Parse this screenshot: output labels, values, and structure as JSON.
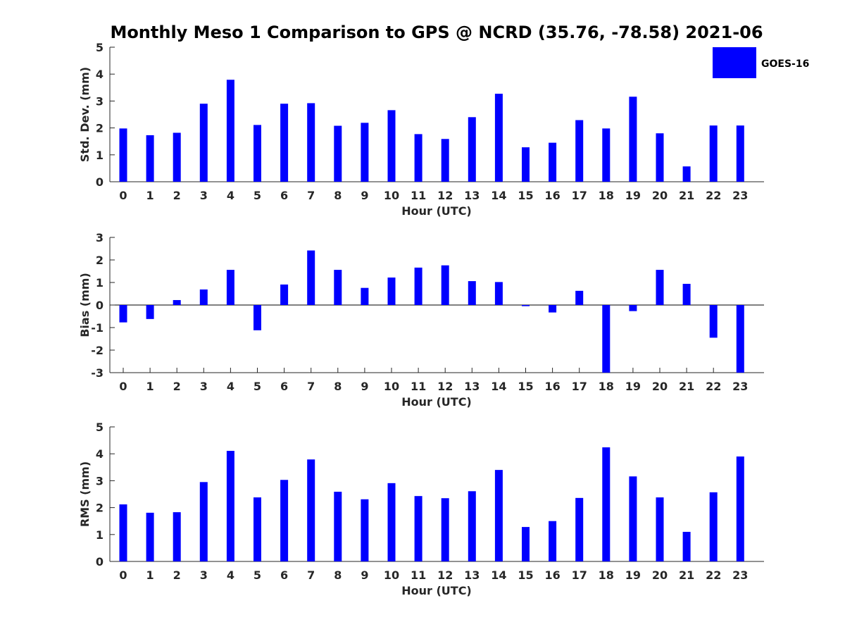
{
  "figure": {
    "title": "Monthly Meso 1 Comparison to GPS @ NCRD (35.76, -78.58) 2021-06",
    "legend_label": "GOES-16",
    "legend_placement": "top-right",
    "bar_color": "#0000ff"
  },
  "chart_data": [
    {
      "type": "bar",
      "xlabel": "Hour (UTC)",
      "ylabel": "Std. Dev. (mm)",
      "categories": [
        "0",
        "1",
        "2",
        "3",
        "4",
        "5",
        "6",
        "7",
        "8",
        "9",
        "10",
        "11",
        "12",
        "13",
        "14",
        "15",
        "16",
        "17",
        "18",
        "19",
        "20",
        "21",
        "22",
        "23"
      ],
      "series": [
        {
          "name": "GOES-16",
          "values": [
            1.98,
            1.73,
            1.82,
            2.9,
            3.79,
            2.11,
            2.9,
            2.92,
            2.08,
            2.19,
            2.66,
            1.77,
            1.59,
            2.4,
            3.27,
            1.28,
            1.45,
            2.29,
            1.98,
            3.16,
            1.8,
            0.57,
            2.09,
            2.09
          ]
        }
      ],
      "ylim": [
        0,
        5
      ],
      "yticks": [
        "0",
        "1",
        "2",
        "3",
        "4",
        "5"
      ],
      "grid": false
    },
    {
      "type": "bar",
      "xlabel": "Hour (UTC)",
      "ylabel": "Bias (mm)",
      "categories": [
        "0",
        "1",
        "2",
        "3",
        "4",
        "5",
        "6",
        "7",
        "8",
        "9",
        "10",
        "11",
        "12",
        "13",
        "14",
        "15",
        "16",
        "17",
        "18",
        "19",
        "20",
        "21",
        "22",
        "23"
      ],
      "series": [
        {
          "name": "GOES-16",
          "values": [
            -0.77,
            -0.62,
            0.22,
            0.69,
            1.56,
            -1.12,
            0.91,
            2.42,
            1.56,
            0.76,
            1.22,
            1.66,
            1.76,
            1.06,
            1.02,
            -0.05,
            -0.33,
            0.63,
            -3.0,
            -0.27,
            1.56,
            0.94,
            -1.45,
            -3.0
          ]
        }
      ],
      "ylim": [
        -3,
        3
      ],
      "yticks": [
        "-3",
        "-2",
        "-1",
        "0",
        "1",
        "2",
        "3"
      ],
      "grid": false
    },
    {
      "type": "bar",
      "xlabel": "Hour (UTC)",
      "ylabel": "RMS (mm)",
      "categories": [
        "0",
        "1",
        "2",
        "3",
        "4",
        "5",
        "6",
        "7",
        "8",
        "9",
        "10",
        "11",
        "12",
        "13",
        "14",
        "15",
        "16",
        "17",
        "18",
        "19",
        "20",
        "21",
        "22",
        "23"
      ],
      "series": [
        {
          "name": "GOES-16",
          "values": [
            2.12,
            1.81,
            1.83,
            2.95,
            4.11,
            2.38,
            3.03,
            3.79,
            2.59,
            2.31,
            2.91,
            2.43,
            2.35,
            2.61,
            3.4,
            1.28,
            1.5,
            2.36,
            4.24,
            3.16,
            2.38,
            1.1,
            2.57,
            3.9
          ]
        }
      ],
      "ylim": [
        0,
        5
      ],
      "yticks": [
        "0",
        "1",
        "2",
        "3",
        "4",
        "5"
      ],
      "grid": false
    }
  ]
}
